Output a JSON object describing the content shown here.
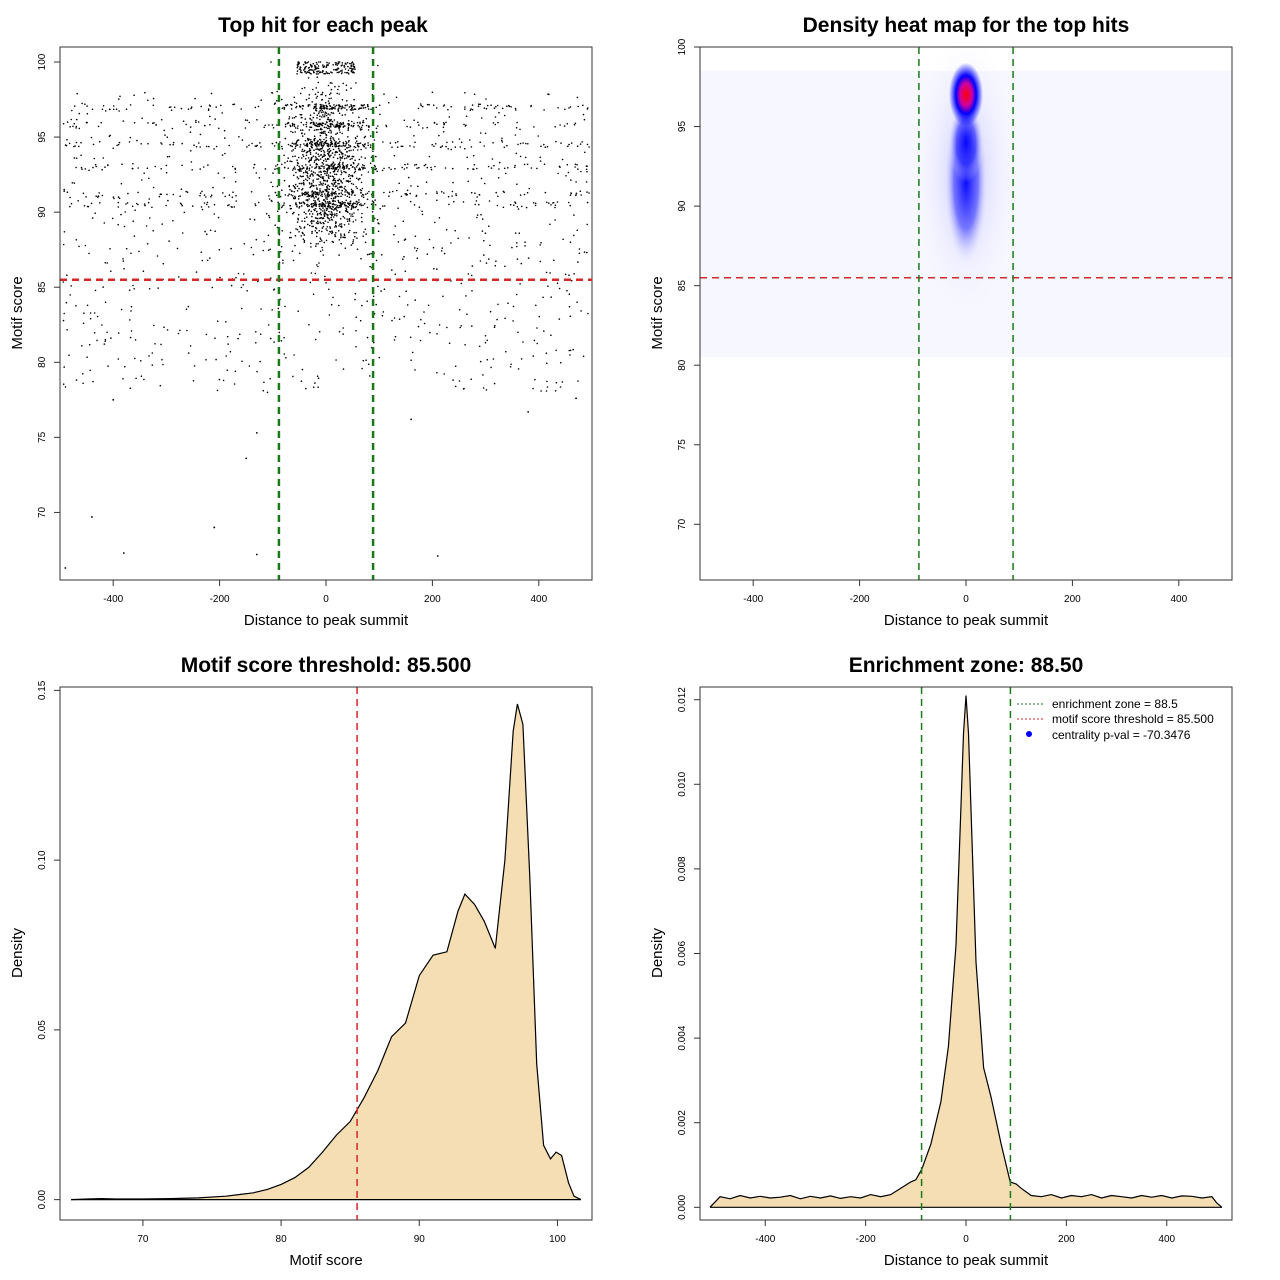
{
  "chart_data": [
    {
      "type": "scatter",
      "title": "Top hit for each peak",
      "xlabel": "Distance to peak summit",
      "ylabel": "Motif score",
      "xlim": [
        -500,
        500
      ],
      "ylim": [
        65.5,
        101
      ],
      "x_ticks": [
        -400,
        -200,
        0,
        200,
        400
      ],
      "y_ticks": [
        70,
        75,
        80,
        85,
        90,
        95,
        100
      ],
      "grid": false,
      "description_of_points": "Several thousand points; dense column around 0, scattered across -500..500; score bands at 94-97",
      "outliers": [
        {
          "x": -490,
          "y": 66.3
        },
        {
          "x": -440,
          "y": 69.7
        },
        {
          "x": -380,
          "y": 67.3
        },
        {
          "x": -210,
          "y": 69.0
        },
        {
          "x": -130,
          "y": 67.2
        },
        {
          "x": 210,
          "y": 67.1
        },
        {
          "x": -150,
          "y": 73.6
        },
        {
          "x": -130,
          "y": 75.3
        },
        {
          "x": 160,
          "y": 76.2
        },
        {
          "x": 380,
          "y": 76.7
        },
        {
          "x": -400,
          "y": 77.5
        },
        {
          "x": 470,
          "y": 77.6
        }
      ],
      "reference_lines": [
        {
          "orientation": "horizontal",
          "value": 85.5,
          "color": "#d62728",
          "style": "dashed"
        },
        {
          "orientation": "vertical",
          "value": -88.5,
          "color": "#1a7a1a",
          "style": "dashed"
        },
        {
          "orientation": "vertical",
          "value": 88.5,
          "color": "#1a7a1a",
          "style": "dashed"
        }
      ]
    },
    {
      "type": "heatmap",
      "title": "Density heat map for the top hits",
      "xlabel": "Distance to peak summit",
      "ylabel": "Motif score",
      "xlim": [
        -500,
        500
      ],
      "ylim": [
        66.5,
        100
      ],
      "x_ticks": [
        -400,
        -200,
        0,
        200,
        400
      ],
      "y_ticks": [
        70,
        75,
        80,
        85,
        90,
        95,
        100
      ],
      "colorscale": [
        "#ffffff",
        "#0000ff",
        "#ff0000"
      ],
      "hotspot": {
        "x": 0,
        "y": 97
      },
      "reference_lines": [
        {
          "orientation": "horizontal",
          "value": 85.5,
          "color": "#d62728",
          "style": "dashed"
        },
        {
          "orientation": "vertical",
          "value": -88.5,
          "color": "#1a7a1a",
          "style": "dashed"
        },
        {
          "orientation": "vertical",
          "value": 88.5,
          "color": "#1a7a1a",
          "style": "dashed"
        }
      ]
    },
    {
      "type": "area",
      "title": "Motif score threshold: 85.500",
      "xlabel": "Motif score",
      "ylabel": "Density",
      "xlim": [
        64,
        102.5
      ],
      "ylim": [
        -0.006,
        0.151
      ],
      "x_ticks": [
        70,
        80,
        90,
        100
      ],
      "y_ticks": [
        0.0,
        0.05,
        0.1,
        0.15
      ],
      "y_tick_labels": [
        "0.00",
        "0.05",
        "0.10",
        "0.15"
      ],
      "fill": "#f5deb3",
      "x": [
        64.8,
        66,
        67,
        68,
        70,
        72,
        74,
        76,
        77,
        78,
        79,
        80,
        81,
        82,
        83,
        84,
        85,
        86,
        87,
        88,
        89,
        90,
        91,
        92,
        92.8,
        93.3,
        94,
        94.7,
        95.5,
        96.2,
        96.8,
        97.1,
        97.5,
        98,
        98.5,
        99,
        99.5,
        99.9,
        100.3,
        100.8,
        101.2,
        101.7
      ],
      "y": [
        0,
        0.0002,
        0.0003,
        0.0002,
        0.0002,
        0.0003,
        0.0005,
        0.001,
        0.0015,
        0.002,
        0.003,
        0.0045,
        0.0065,
        0.0095,
        0.014,
        0.019,
        0.023,
        0.03,
        0.038,
        0.048,
        0.052,
        0.066,
        0.072,
        0.073,
        0.085,
        0.09,
        0.087,
        0.082,
        0.074,
        0.1,
        0.138,
        0.146,
        0.14,
        0.095,
        0.04,
        0.016,
        0.012,
        0.014,
        0.013,
        0.005,
        0.001,
        0
      ],
      "reference_lines": [
        {
          "orientation": "vertical",
          "value": 85.5,
          "color": "#d62728",
          "style": "dashed"
        }
      ]
    },
    {
      "type": "area",
      "title": "Enrichment zone: 88.50",
      "xlabel": "Distance to peak summit",
      "ylabel": "Density",
      "xlim": [
        -530,
        530
      ],
      "ylim": [
        -0.0003,
        0.0123
      ],
      "x_ticks": [
        -400,
        -200,
        0,
        200,
        400
      ],
      "y_ticks": [
        0.0,
        0.002,
        0.004,
        0.006,
        0.008,
        0.01,
        0.012
      ],
      "y_tick_labels": [
        "0.000",
        "0.002",
        "0.004",
        "0.006",
        "0.008",
        "0.010",
        "0.012"
      ],
      "fill": "#f5deb3",
      "x": [
        -510,
        -490,
        -470,
        -450,
        -430,
        -410,
        -390,
        -370,
        -350,
        -330,
        -310,
        -290,
        -270,
        -250,
        -230,
        -210,
        -190,
        -170,
        -150,
        -130,
        -110,
        -100,
        -88,
        -70,
        -50,
        -35,
        -20,
        -10,
        -5,
        0,
        5,
        10,
        20,
        35,
        50,
        70,
        88,
        100,
        110,
        130,
        150,
        170,
        190,
        210,
        230,
        250,
        270,
        290,
        310,
        330,
        350,
        370,
        390,
        410,
        430,
        450,
        470,
        490,
        500,
        510
      ],
      "y": [
        0,
        0.00025,
        0.0002,
        0.00028,
        0.00022,
        0.00026,
        0.00022,
        0.00024,
        0.00028,
        0.0002,
        0.00026,
        0.00022,
        0.00027,
        0.00021,
        0.00025,
        0.00022,
        0.0003,
        0.00025,
        0.0003,
        0.00045,
        0.0006,
        0.00065,
        0.0009,
        0.0015,
        0.0025,
        0.0038,
        0.0062,
        0.0095,
        0.0112,
        0.0121,
        0.0112,
        0.0094,
        0.0058,
        0.0033,
        0.0026,
        0.0015,
        0.0006,
        0.00055,
        0.00045,
        0.00028,
        0.00025,
        0.0003,
        0.00022,
        0.00028,
        0.00025,
        0.0003,
        0.00022,
        0.00028,
        0.00025,
        0.00022,
        0.00028,
        0.00024,
        0.00028,
        0.00022,
        0.00027,
        0.00026,
        0.00022,
        0.00025,
        0.0001,
        0
      ],
      "reference_lines": [
        {
          "orientation": "vertical",
          "value": -88.5,
          "color": "#1a7a1a",
          "style": "dashed"
        },
        {
          "orientation": "vertical",
          "value": 88.5,
          "color": "#1a7a1a",
          "style": "dashed"
        }
      ],
      "legend": {
        "placement": "top-right",
        "entries": [
          {
            "label": "enrichment zone = 88.5",
            "color": "#1a7a1a",
            "symbol": "dotted-line"
          },
          {
            "label": "motif score threshold = 85.500",
            "color": "#d62728",
            "symbol": "dotted-line"
          },
          {
            "label": "centrality p-val = -70.3476",
            "color": "#0000ff",
            "symbol": "dot"
          }
        ]
      }
    }
  ]
}
